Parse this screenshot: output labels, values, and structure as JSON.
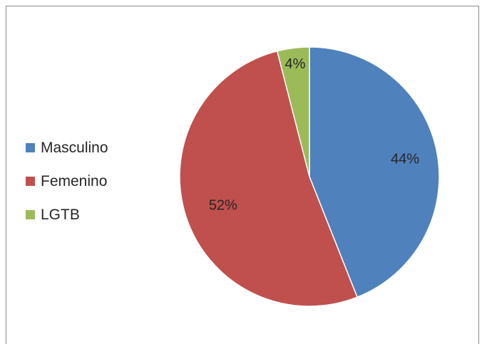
{
  "chart_data": {
    "type": "pie",
    "categories": [
      "Masculino",
      "Femenino",
      "LGTB"
    ],
    "values": [
      44,
      52,
      4
    ],
    "labels": [
      "44%",
      "52%",
      "4%"
    ],
    "colors": [
      "#4f81bd",
      "#c0504d",
      "#9bbb59"
    ],
    "legend_position": "left"
  }
}
